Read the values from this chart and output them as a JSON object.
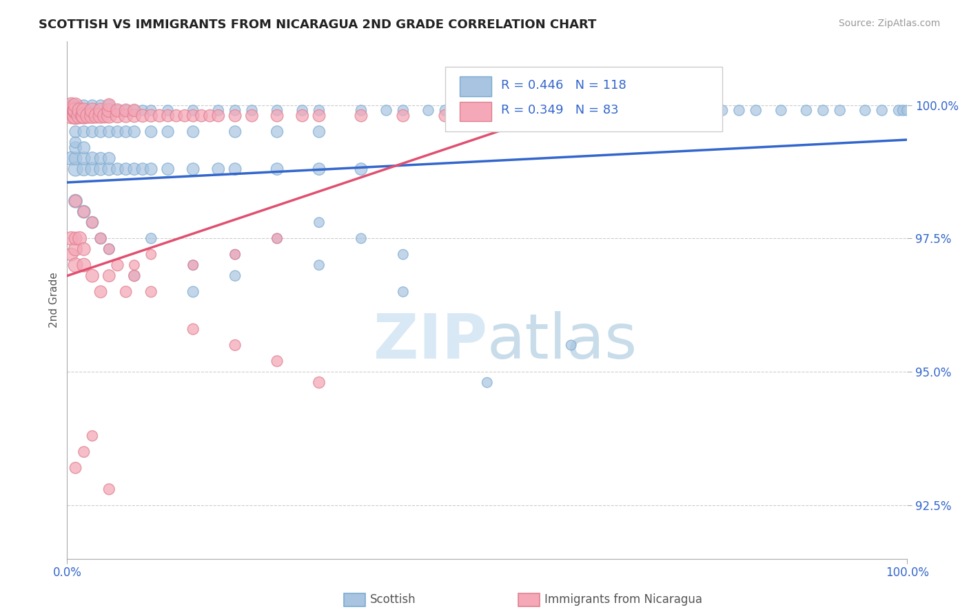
{
  "title": "SCOTTISH VS IMMIGRANTS FROM NICARAGUA 2ND GRADE CORRELATION CHART",
  "source_text": "Source: ZipAtlas.com",
  "ylabel": "2nd Grade",
  "ylabel_ticks": [
    "92.5%",
    "95.0%",
    "97.5%",
    "100.0%"
  ],
  "ylabel_tick_vals": [
    92.5,
    95.0,
    97.5,
    100.0
  ],
  "R_blue": 0.446,
  "N_blue": 118,
  "R_pink": 0.349,
  "N_pink": 83,
  "blue_color": "#a8c4e0",
  "blue_line_color": "#3366cc",
  "pink_color": "#f4a8b8",
  "pink_line_color": "#e05070",
  "blue_edge_color": "#7aaad0",
  "pink_edge_color": "#e08090",
  "watermark_color": "#d8e8f4",
  "background_color": "#ffffff",
  "xlim": [
    0,
    100
  ],
  "ylim": [
    91.5,
    101.2
  ],
  "blue_trend": {
    "x_start": 0,
    "x_end": 100,
    "y_start": 98.55,
    "y_end": 99.35
  },
  "pink_trend": {
    "x_start": 0,
    "x_end": 55,
    "y_start": 96.8,
    "y_end": 99.7
  }
}
